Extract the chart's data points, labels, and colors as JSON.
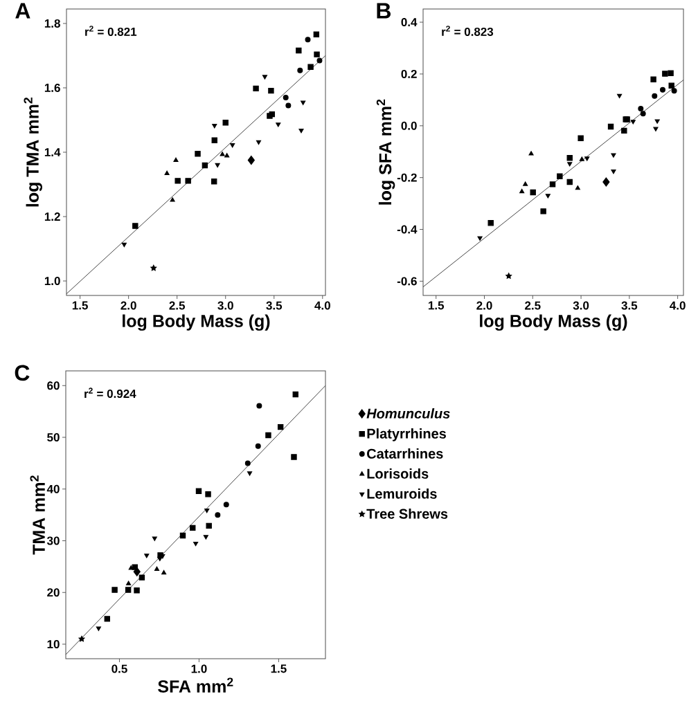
{
  "chart_data": [
    {
      "type": "scatter",
      "title": "A",
      "xlabel": "log Body Mass (g)",
      "ylabel": "log TMA mm$^{2}$",
      "annotations": [
        "r$^{2}$ = 0.821"
      ],
      "xlim": [
        1.36,
        4.03
      ],
      "ylim": [
        0.955,
        1.845
      ],
      "xticks": [
        1.5,
        {
          "value": 2.0,
          "label": "2.0"
        },
        2.5,
        {
          "value": 3.0,
          "label": "3.0"
        },
        3.5,
        {
          "value": 4.0,
          "label": "4.0"
        }
      ],
      "yticks": [
        {
          "value": 1.0,
          "label": "1.0"
        },
        1.2,
        1.4,
        1.6,
        1.8
      ],
      "series": [
        {
          "marker": "diamond",
          "color": "#000000",
          "x": [
            3.265
          ],
          "values": [
            1.375
          ]
        },
        {
          "marker": "square",
          "color": "#000000",
          "x": [
            3.936,
            3.754,
            3.941,
            3.877,
            3.313,
            3.469,
            3.455,
            3.479,
            3.0,
            2.886,
            2.713,
            2.787,
            2.507,
            2.614,
            2.882,
            2.069
          ],
          "values": [
            1.766,
            1.716,
            1.704,
            1.665,
            1.598,
            1.591,
            1.513,
            1.518,
            1.492,
            1.437,
            1.395,
            1.359,
            1.311,
            1.311,
            1.309,
            1.171
          ]
        },
        {
          "marker": "circle",
          "color": "#000000",
          "x": [
            3.848,
            3.969,
            3.768,
            3.621,
            3.647
          ],
          "values": [
            1.75,
            1.685,
            1.654,
            1.57,
            1.545
          ]
        },
        {
          "marker": "triangle",
          "color": "#000000",
          "x": [
            2.488,
            2.396,
            2.453,
            2.967,
            3.014
          ],
          "values": [
            1.375,
            1.334,
            1.251,
            1.393,
            1.389
          ]
        },
        {
          "marker": "triangle-down",
          "color": "#000000",
          "x": [
            3.405,
            3.799,
            2.886,
            3.543,
            3.78,
            3.341,
            3.071,
            2.917,
            1.955
          ],
          "values": [
            1.635,
            1.555,
            1.483,
            1.487,
            1.468,
            1.432,
            1.423,
            1.361,
            1.114
          ]
        },
        {
          "marker": "star",
          "color": "#000000",
          "x": [
            2.258
          ],
          "values": [
            1.04
          ]
        },
        {
          "type": "line",
          "marker": "none",
          "line_style": "solid",
          "color": "#333333",
          "x": [
            1.36,
            4.03
          ],
          "values": [
            0.96,
            1.7
          ]
        }
      ]
    },
    {
      "type": "scatter",
      "title": "B",
      "xlabel": "log Body Mass (g)",
      "ylabel": "log SFA mm$^{2}$",
      "annotations": [
        "r$^{2}$ = 0.823"
      ],
      "xlim": [
        1.366,
        4.06
      ],
      "ylim": [
        -0.655,
        0.451
      ],
      "xticks": [
        1.5,
        {
          "value": 2.0,
          "label": "2.0"
        },
        2.5,
        {
          "value": 3.0,
          "label": "3.0"
        },
        3.5,
        {
          "value": 4.0,
          "label": "4.0"
        }
      ],
      "yticks": [
        -0.6,
        -0.4,
        -0.2,
        {
          "value": 0.0,
          "label": "0.0"
        },
        0.2,
        0.4
      ],
      "series": [
        {
          "marker": "diamond",
          "color": "#000000",
          "x": [
            3.26
          ],
          "values": [
            -0.217
          ]
        },
        {
          "marker": "square",
          "color": "#000000",
          "x": [
            3.749,
            3.869,
            3.928,
            3.936,
            3.463,
            3.477,
            3.308,
            3.446,
            2.997,
            2.883,
            2.883,
            2.78,
            2.706,
            2.503,
            2.61,
            2.066
          ],
          "values": [
            0.179,
            0.201,
            0.203,
            0.155,
            0.025,
            0.025,
            -0.003,
            -0.019,
            -0.048,
            -0.124,
            -0.217,
            -0.195,
            -0.226,
            -0.257,
            -0.33,
            -0.375
          ]
        },
        {
          "marker": "circle",
          "color": "#000000",
          "x": [
            3.845,
            3.761,
            3.964,
            3.618,
            3.642
          ],
          "values": [
            0.139,
            0.115,
            0.135,
            0.066,
            0.047
          ]
        },
        {
          "marker": "triangle",
          "color": "#000000",
          "x": [
            2.484,
            2.424,
            2.388,
            3.009,
            2.966
          ],
          "values": [
            -0.108,
            -0.226,
            -0.254,
            -0.13,
            -0.241
          ]
        },
        {
          "marker": "triangle-down",
          "color": "#000000",
          "x": [
            3.398,
            3.539,
            3.789,
            3.773,
            3.336,
            3.336,
            3.062,
            2.883,
            2.658,
            1.954
          ],
          "values": [
            0.117,
            0.017,
            0.019,
            -0.011,
            -0.112,
            -0.175,
            -0.125,
            -0.146,
            -0.269,
            -0.433
          ]
        },
        {
          "marker": "star",
          "color": "#000000",
          "x": [
            2.252
          ],
          "values": [
            -0.58
          ]
        },
        {
          "type": "line",
          "marker": "none",
          "line_style": "solid",
          "color": "#333333",
          "x": [
            1.366,
            4.06
          ],
          "values": [
            -0.622,
            0.177
          ]
        }
      ]
    },
    {
      "type": "scatter",
      "title": "C",
      "xlabel": "SFA mm$^{2}$",
      "ylabel": "TMA mm$^{2}$",
      "annotations": [
        "r$^{2}$ = 0.924"
      ],
      "legend": "right",
      "xlim": [
        0.163,
        1.794
      ],
      "ylim": [
        7.19,
        62.85
      ],
      "xticks": [
        0.5,
        {
          "value": 1.0,
          "label": "1.0"
        },
        1.5
      ],
      "yticks": [
        10,
        20,
        30,
        40,
        50,
        60
      ],
      "series": [
        {
          "name": "*Homunculus*",
          "marker": "diamond",
          "color": "#000000",
          "x": [
            0.61
          ],
          "values": [
            24.0
          ]
        },
        {
          "name": "Platyrrhines",
          "marker": "square",
          "color": "#000000",
          "x": [
            1.606,
            1.512,
            1.435,
            1.596,
            0.998,
            1.057,
            0.96,
            1.062,
            0.898,
            0.757,
            0.597,
            0.641,
            0.47,
            0.555,
            0.609,
            0.423
          ],
          "values": [
            58.3,
            52.0,
            50.4,
            46.2,
            39.6,
            39.0,
            32.5,
            32.9,
            31.0,
            27.2,
            24.9,
            22.9,
            20.5,
            20.5,
            20.4,
            14.9
          ]
        },
        {
          "name": "Catarrhines",
          "marker": "circle",
          "color": "#000000",
          "x": [
            1.378,
            1.371,
            1.306,
            1.171,
            1.117
          ],
          "values": [
            56.1,
            48.3,
            45.0,
            37.0,
            35.0
          ]
        },
        {
          "name": "Lorisoids",
          "marker": "triangle",
          "color": "#000000",
          "x": [
            0.557,
            0.573,
            0.735,
            0.779
          ],
          "values": [
            21.7,
            24.7,
            24.5,
            23.8
          ]
        },
        {
          "name": "Lemuroids",
          "marker": "triangle-down",
          "color": "#000000",
          "x": [
            1.318,
            1.049,
            1.043,
            0.979,
            0.721,
            0.671,
            0.754,
            0.771,
            0.369
          ],
          "values": [
            43.1,
            35.9,
            30.8,
            29.5,
            30.5,
            27.2,
            26.6,
            27.1,
            13.1
          ]
        },
        {
          "name": "Tree Shrews",
          "marker": "star",
          "color": "#000000",
          "x": [
            0.263
          ],
          "values": [
            11.0
          ]
        },
        {
          "type": "line",
          "marker": "none",
          "line_style": "solid",
          "color": "#333333",
          "x": [
            0.163,
            1.794
          ],
          "values": [
            8.0,
            60.0
          ]
        }
      ]
    }
  ]
}
